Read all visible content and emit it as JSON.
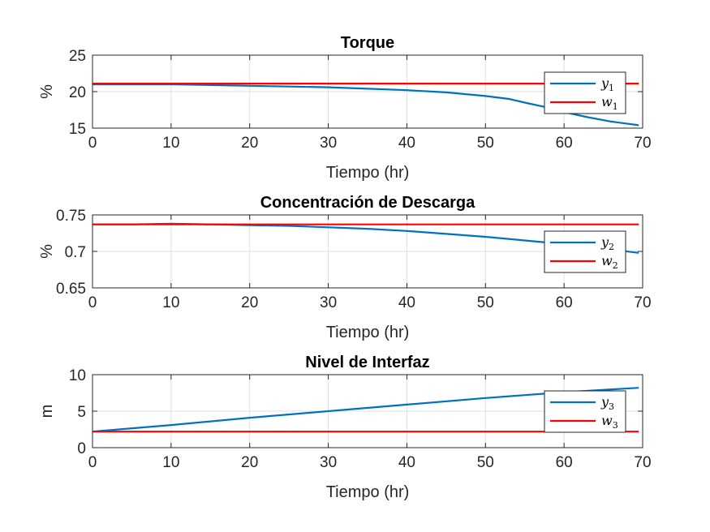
{
  "colors": {
    "y": "#0072BD",
    "w": "#FF0000",
    "grid": "#dfdfdf",
    "axis": "#262626"
  },
  "chart_data": [
    {
      "type": "line",
      "title": "Torque",
      "xlabel": "Tiempo (hr)",
      "ylabel": "%",
      "xlim": [
        0,
        70
      ],
      "ylim": [
        15,
        25
      ],
      "xticks": [
        "0",
        "10",
        "20",
        "30",
        "40",
        "50",
        "60",
        "70"
      ],
      "yticks": [
        "15",
        "20",
        "25"
      ],
      "grid": true,
      "legend_position": "right",
      "series": [
        {
          "name": "y",
          "sub": "1",
          "color_key": "y",
          "x": [
            0,
            5,
            10,
            15,
            20,
            25,
            30,
            35,
            40,
            45,
            50,
            53,
            55,
            58,
            60,
            63,
            66,
            69.5
          ],
          "y": [
            21.0,
            21.0,
            21.0,
            20.9,
            20.8,
            20.7,
            20.6,
            20.4,
            20.2,
            19.9,
            19.4,
            19.0,
            18.5,
            17.8,
            17.2,
            16.5,
            15.9,
            15.4
          ]
        },
        {
          "name": "w",
          "sub": "1",
          "color_key": "w",
          "x": [
            0,
            69.5
          ],
          "y": [
            21.1,
            21.1
          ]
        }
      ]
    },
    {
      "type": "line",
      "title": "Concentración de Descarga",
      "xlabel": "Tiempo (hr)",
      "ylabel": "%",
      "xlim": [
        0,
        70
      ],
      "ylim": [
        0.65,
        0.75
      ],
      "xticks": [
        "0",
        "10",
        "20",
        "30",
        "40",
        "50",
        "60",
        "70"
      ],
      "yticks": [
        "0.65",
        "0.7",
        "0.75"
      ],
      "grid": true,
      "legend_position": "right",
      "series": [
        {
          "name": "y",
          "sub": "2",
          "color_key": "y",
          "x": [
            0,
            5,
            10,
            15,
            20,
            25,
            30,
            35,
            40,
            45,
            50,
            55,
            60,
            65,
            69.5
          ],
          "y": [
            0.737,
            0.737,
            0.738,
            0.737,
            0.736,
            0.735,
            0.733,
            0.731,
            0.728,
            0.724,
            0.72,
            0.715,
            0.71,
            0.704,
            0.698
          ]
        },
        {
          "name": "w",
          "sub": "2",
          "color_key": "w",
          "x": [
            0,
            69.5
          ],
          "y": [
            0.737,
            0.737
          ]
        }
      ]
    },
    {
      "type": "line",
      "title": "Nivel de Interfaz",
      "xlabel": "Tiempo (hr)",
      "ylabel": "m",
      "xlim": [
        0,
        70
      ],
      "ylim": [
        0,
        10
      ],
      "xticks": [
        "0",
        "10",
        "20",
        "30",
        "40",
        "50",
        "60",
        "70"
      ],
      "yticks": [
        "0",
        "5",
        "10"
      ],
      "grid": true,
      "legend_position": "right",
      "series": [
        {
          "name": "y",
          "sub": "3",
          "color_key": "y",
          "x": [
            0,
            10,
            20,
            30,
            40,
            50,
            60,
            69.5
          ],
          "y": [
            2.2,
            3.1,
            4.1,
            5.0,
            5.9,
            6.8,
            7.6,
            8.2
          ]
        },
        {
          "name": "w",
          "sub": "3",
          "color_key": "w",
          "x": [
            0,
            69.5
          ],
          "y": [
            2.2,
            2.2
          ]
        }
      ]
    }
  ]
}
